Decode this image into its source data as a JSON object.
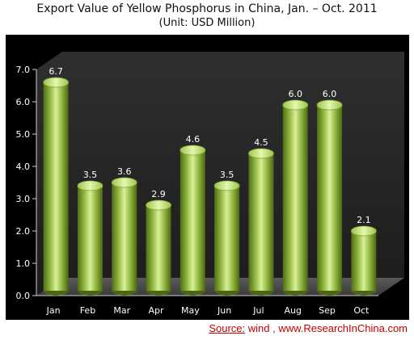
{
  "chart_data": {
    "type": "bar",
    "title": "Export Value of Yellow Phosphorus in China, Jan. – Oct. 2011",
    "subtitle": "(Unit: USD Million)",
    "categories": [
      "Jan",
      "Feb",
      "Mar",
      "Apr",
      "May",
      "Jun",
      "Jul",
      "Aug",
      "Sep",
      "Oct"
    ],
    "values": [
      6.7,
      3.5,
      3.6,
      2.9,
      4.6,
      3.5,
      4.5,
      6.0,
      6.0,
      2.1
    ],
    "data_labels": [
      "6.7",
      "3.5",
      "3.6",
      "2.9",
      "4.6",
      "3.5",
      "4.5",
      "6.0",
      "6.0",
      "2.1"
    ],
    "y_ticks": [
      "0.0",
      "1.0",
      "2.0",
      "3.0",
      "4.0",
      "5.0",
      "6.0",
      "7.0"
    ],
    "ylim": [
      0,
      7
    ],
    "grid": false,
    "legend": "none",
    "colors": {
      "background": "#000000",
      "bar": "#8db33a",
      "bar_highlight": "#d8f09a",
      "bar_shadow": "#4f6d18",
      "text": "#ffffff"
    }
  },
  "source": {
    "label": "Source:",
    "text": " wind , www.ResearchInChina.com"
  }
}
